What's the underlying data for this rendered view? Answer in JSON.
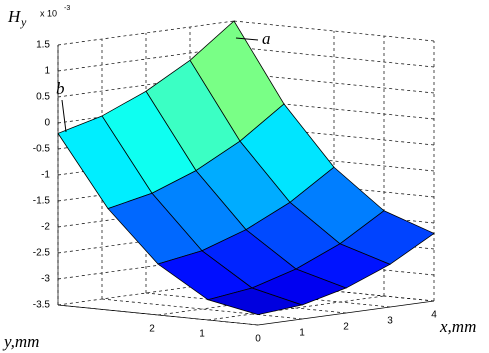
{
  "chart_data": {
    "type": "surface",
    "zlabel": {
      "main": "H",
      "sub": "y"
    },
    "exponent": {
      "base": "x 10",
      "exp": "-3"
    },
    "xlabel": "x,mm",
    "ylabel": "y,mm",
    "annotations": [
      "a",
      "b"
    ],
    "x": [
      0,
      1,
      2,
      3,
      4
    ],
    "y": [
      0,
      1,
      2,
      3,
      4
    ],
    "z": [
      [
        -3.3,
        -3.23,
        -3.02,
        -2.68,
        -2.2
      ],
      [
        -3.11,
        -3.0,
        -2.75,
        -2.38,
        -1.86
      ],
      [
        -2.52,
        -2.38,
        -2.09,
        -1.68,
        -1.12
      ],
      [
        -1.55,
        -1.37,
        -1.05,
        -0.6,
        0.0
      ],
      [
        -0.2,
        0.02,
        0.38,
        0.86,
        1.5
      ]
    ],
    "xlim": [
      0,
      4
    ],
    "ylim": [
      0,
      4
    ],
    "zlim": [
      -3.5,
      1.5
    ],
    "xticks": [
      0,
      1,
      2,
      3,
      4
    ],
    "yticks": [
      1,
      2
    ],
    "zticks": [
      -3.5,
      -3,
      -2.5,
      -2,
      -1.5,
      -1,
      -0.5,
      0,
      0.5,
      1,
      1.5
    ],
    "colormap": "jet",
    "clim": [
      -4,
      5
    ],
    "grid": true
  }
}
